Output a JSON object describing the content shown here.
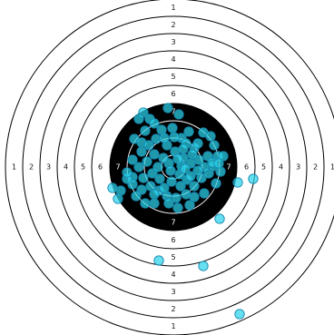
{
  "target": {
    "ring_labels": [
      "1",
      "2",
      "3",
      "4",
      "5",
      "6",
      "7"
    ],
    "colors": {
      "background": "#ffffff",
      "ring_line": "#000000",
      "bull_fill": "#000000",
      "bull_ring_line": "#ffffff",
      "shot_fill": "#2bd4ea",
      "shot_stroke": "#1686b0"
    }
  }
}
